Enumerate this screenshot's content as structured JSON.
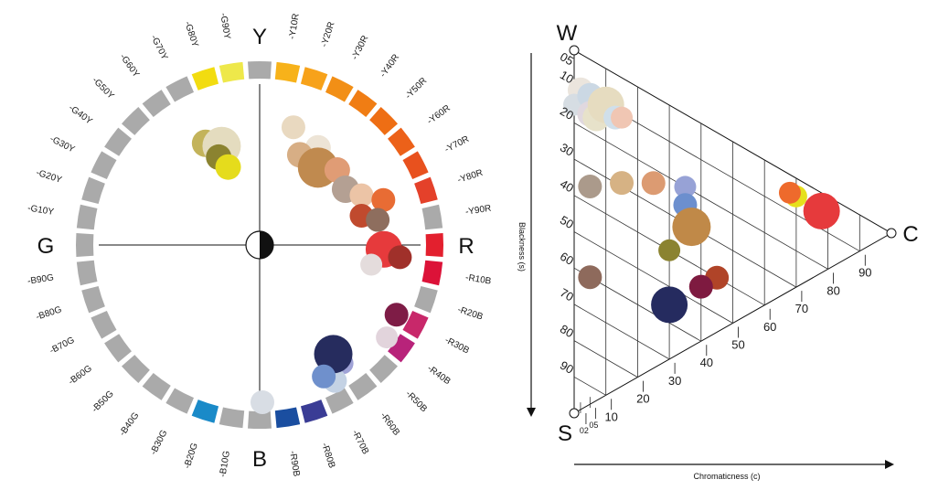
{
  "hue_circle": {
    "big_labels": {
      "top": "Y",
      "right": "R",
      "bottom": "B",
      "left": "G"
    },
    "hue_labels": [
      "-Y10R",
      "-Y20R",
      "-Y30R",
      "-Y40R",
      "-Y50R",
      "-Y60R",
      "-Y70R",
      "-Y80R",
      "-Y90R",
      "-R10B",
      "-R20B",
      "-R30B",
      "-R40B",
      "-R50B",
      "-R60B",
      "-R70B",
      "-R80B",
      "-R90B",
      "-B10G",
      "-B20G",
      "-B30G",
      "-B40G",
      "-B50G",
      "-B60G",
      "-B70G",
      "-B80G",
      "-B90G",
      "-G10Y",
      "-G20Y",
      "-G30Y",
      "-G40Y",
      "-G50Y",
      "-G60Y",
      "-G70Y",
      "-G80Y",
      "-G90Y"
    ],
    "segment_colors": [
      "#aaaaaa",
      "#f7b21a",
      "#f7a21a",
      "#f28f16",
      "#f07d14",
      "#ee6e14",
      "#ec6119",
      "#e8511e",
      "#e4412a",
      "#aaaaaa",
      "#e3202e",
      "#dc1238",
      "#aaaaaa",
      "#c8286a",
      "#b8237a",
      "#aaaaaa",
      "#aaaaaa",
      "#aaaaaa",
      "#3a3c95",
      "#1a4ea0",
      "#aaaaaa",
      "#aaaaaa",
      "#1a8ac8",
      "#aaaaaa",
      "#aaaaaa",
      "#aaaaaa",
      "#aaaaaa",
      "#aaaaaa",
      "#aaaaaa",
      "#aaaaaa",
      "#aaaaaa",
      "#aaaaaa",
      "#aaaaaa",
      "#aaaaaa",
      "#aaaaaa",
      "#aaaaaa",
      "#aaaaaa",
      "#aaaaaa",
      "#f2dc10",
      "#eee84a"
    ],
    "samples": [
      {
        "hue_angle": -28,
        "radius_frac": 0.63,
        "size": 15,
        "color": "#c3b35a"
      },
      {
        "hue_angle": -21,
        "radius_frac": 0.58,
        "size": 21,
        "color": "#e4dcbf"
      },
      {
        "hue_angle": -25,
        "radius_frac": 0.53,
        "size": 14,
        "color": "#8b8330"
      },
      {
        "hue_angle": -22,
        "radius_frac": 0.46,
        "size": 14,
        "color": "#e5dc1c"
      },
      {
        "hue_angle": 16,
        "radius_frac": 0.67,
        "size": 13,
        "color": "#e9d9c0"
      },
      {
        "hue_angle": 31,
        "radius_frac": 0.62,
        "size": 14,
        "color": "#ede4d6"
      },
      {
        "hue_angle": 24,
        "radius_frac": 0.54,
        "size": 14,
        "color": "#d7ae85"
      },
      {
        "hue_angle": 37,
        "radius_frac": 0.53,
        "size": 22,
        "color": "#c08a4f"
      },
      {
        "hue_angle": 46,
        "radius_frac": 0.59,
        "size": 14,
        "color": "#e09c75"
      },
      {
        "hue_angle": 57,
        "radius_frac": 0.56,
        "size": 15,
        "color": "#b4a093"
      },
      {
        "hue_angle": 64,
        "radius_frac": 0.62,
        "size": 13,
        "color": "#ecc4a6"
      },
      {
        "hue_angle": 74,
        "radius_frac": 0.58,
        "size": 13,
        "color": "#c04a2e"
      },
      {
        "hue_angle": 70,
        "radius_frac": 0.72,
        "size": 13,
        "color": "#e86c34"
      },
      {
        "hue_angle": 78,
        "radius_frac": 0.66,
        "size": 13,
        "color": "#8e6e5e"
      },
      {
        "hue_angle": 92,
        "radius_frac": 0.68,
        "size": 20,
        "color": "#e63a3c"
      },
      {
        "hue_angle": 95,
        "radius_frac": 0.77,
        "size": 13,
        "color": "#a0302a"
      },
      {
        "hue_angle": 100,
        "radius_frac": 0.62,
        "size": 12,
        "color": "#e4dcdc"
      },
      {
        "hue_angle": 117,
        "radius_frac": 0.84,
        "size": 13,
        "color": "#7e1c46"
      },
      {
        "hue_angle": 126,
        "radius_frac": 0.86,
        "size": 12,
        "color": "#e2d4dc"
      },
      {
        "hue_angle": 145,
        "radius_frac": 0.79,
        "size": 12,
        "color": "#9fa2d6"
      },
      {
        "hue_angle": 151,
        "radius_frac": 0.85,
        "size": 13,
        "color": "#c4d2e4"
      },
      {
        "hue_angle": 146,
        "radius_frac": 0.72,
        "size": 21,
        "color": "#262c5e"
      },
      {
        "hue_angle": 154,
        "radius_frac": 0.8,
        "size": 13,
        "color": "#6f90cc"
      },
      {
        "hue_angle": 179,
        "radius_frac": 0.86,
        "size": 13,
        "color": "#d8dde4"
      }
    ]
  },
  "triangle": {
    "corner_labels": {
      "w": "W",
      "s": "S",
      "c": "C"
    },
    "blackness_ticks": [
      "05",
      "10",
      "20",
      "30",
      "40",
      "50",
      "60",
      "70",
      "80",
      "90"
    ],
    "chromaticness_ticks": [
      "02",
      "05",
      "10",
      "20",
      "30",
      "40",
      "50",
      "60",
      "70",
      "80",
      "90"
    ],
    "blackness_axis_title": "Blackness (s)",
    "chromaticness_axis_title": "Chromaticness (c)",
    "samples": [
      {
        "s": 10,
        "c": 2,
        "size": 14,
        "color": "#ebe5dd"
      },
      {
        "s": 15,
        "c": 0,
        "size": 12,
        "color": "#d6dde3"
      },
      {
        "s": 10,
        "c": 5,
        "size": 14,
        "color": "#cbd8e4"
      },
      {
        "s": 15,
        "c": 5,
        "size": 14,
        "color": "#e0d8df"
      },
      {
        "s": 15,
        "c": 7,
        "size": 15,
        "color": "#e7e2ca"
      },
      {
        "s": 10,
        "c": 10,
        "size": 20,
        "color": "#e6dcc0"
      },
      {
        "s": 12,
        "c": 13,
        "size": 13,
        "color": "#d0dfea"
      },
      {
        "s": 11,
        "c": 15,
        "size": 12,
        "color": "#f0c6b3"
      },
      {
        "s": 35,
        "c": 5,
        "size": 13,
        "color": "#ab9a8b"
      },
      {
        "s": 29,
        "c": 15,
        "size": 13,
        "color": "#d6b284"
      },
      {
        "s": 24,
        "c": 25,
        "size": 13,
        "color": "#dc9b72"
      },
      {
        "s": 20,
        "c": 35,
        "size": 12,
        "color": "#97a2d6"
      },
      {
        "s": 25,
        "c": 35,
        "size": 13,
        "color": "#6c8fce"
      },
      {
        "s": 30,
        "c": 37,
        "size": 21,
        "color": "#c08948"
      },
      {
        "s": 40,
        "c": 30,
        "size": 12,
        "color": "#8b8330"
      },
      {
        "s": 40,
        "c": 45,
        "size": 13,
        "color": "#b04428"
      },
      {
        "s": 45,
        "c": 40,
        "size": 13,
        "color": "#7e1a40"
      },
      {
        "s": 60,
        "c": 5,
        "size": 13,
        "color": "#8e6a5c"
      },
      {
        "s": 55,
        "c": 30,
        "size": 20,
        "color": "#252b5f"
      },
      {
        "s": 5,
        "c": 70,
        "size": 12,
        "color": "#e6e01c"
      },
      {
        "s": 5,
        "c": 68,
        "size": 12,
        "color": "#ee6a2c"
      },
      {
        "s": 5,
        "c": 78,
        "size": 20,
        "color": "#e63a3c"
      }
    ]
  }
}
